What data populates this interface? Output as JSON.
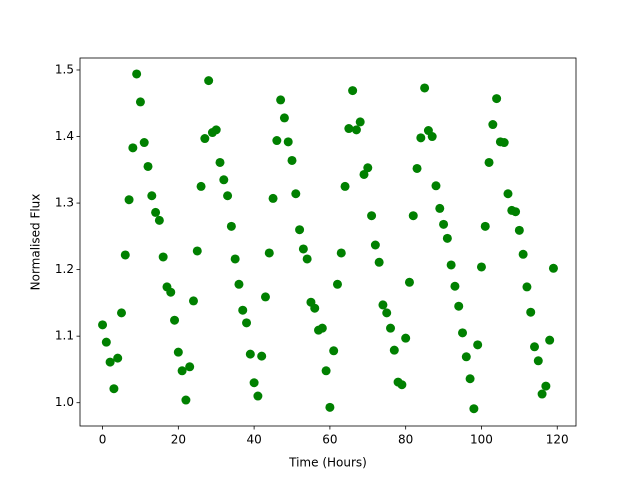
{
  "chart_data": {
    "type": "scatter",
    "xlabel": "Time (Hours)",
    "ylabel": "Normalised Flux",
    "color": "#008000",
    "x": [
      0,
      1,
      2,
      3,
      4,
      5,
      6,
      7,
      8,
      9,
      10,
      11,
      12,
      13,
      14,
      15,
      16,
      17,
      18,
      19,
      20,
      21,
      22,
      23,
      24,
      25,
      26,
      27,
      28,
      29,
      30,
      31,
      32,
      33,
      34,
      35,
      36,
      37,
      38,
      39,
      40,
      41,
      42,
      43,
      44,
      45,
      46,
      47,
      48,
      49,
      50,
      51,
      52,
      53,
      54,
      55,
      56,
      57,
      58,
      59,
      60,
      61,
      62,
      63,
      64,
      65,
      66,
      67,
      68,
      69,
      70,
      71,
      72,
      73,
      74,
      75,
      76,
      77,
      78,
      79,
      80,
      81,
      82,
      83,
      84,
      85,
      86,
      87,
      88,
      89,
      90,
      91,
      92,
      93,
      94,
      95,
      96,
      97,
      98,
      99,
      100,
      101,
      102,
      103,
      104,
      105,
      106,
      107,
      108,
      109,
      110,
      111,
      112,
      113,
      114,
      115,
      116,
      117,
      118,
      119
    ],
    "values": [
      1.117,
      1.091,
      1.061,
      1.021,
      1.067,
      1.135,
      1.222,
      1.305,
      1.383,
      1.494,
      1.452,
      1.391,
      1.355,
      1.311,
      1.286,
      1.274,
      1.219,
      1.174,
      1.166,
      1.124,
      1.076,
      1.048,
      1.004,
      1.054,
      1.153,
      1.228,
      1.325,
      1.397,
      1.484,
      1.406,
      1.41,
      1.361,
      1.335,
      1.311,
      1.265,
      1.216,
      1.178,
      1.139,
      1.12,
      1.073,
      1.03,
      1.01,
      1.07,
      1.159,
      1.225,
      1.307,
      1.394,
      1.455,
      1.428,
      1.392,
      1.364,
      1.314,
      1.26,
      1.231,
      1.216,
      1.151,
      1.142,
      1.109,
      1.112,
      1.048,
      0.993,
      1.078,
      1.178,
      1.225,
      1.325,
      1.412,
      1.469,
      1.41,
      1.422,
      1.343,
      1.353,
      1.281,
      1.237,
      1.211,
      1.147,
      1.135,
      1.112,
      1.079,
      1.031,
      1.027,
      1.097,
      1.181,
      1.281,
      1.352,
      1.398,
      1.473,
      1.409,
      1.4,
      1.326,
      1.292,
      1.268,
      1.247,
      1.207,
      1.175,
      1.145,
      1.105,
      1.069,
      1.036,
      0.991,
      1.087,
      1.204,
      1.265,
      1.361,
      1.418,
      1.457,
      1.392,
      1.391,
      1.314,
      1.289,
      1.287,
      1.259,
      1.223,
      1.174,
      1.136,
      1.084,
      1.063,
      1.013,
      1.025,
      1.094,
      1.202
    ],
    "xlim": [
      -5.95,
      124.95
    ],
    "xticks": [
      0,
      20,
      40,
      60,
      80,
      100,
      120
    ],
    "ylim": [
      0.965,
      1.518
    ],
    "yticks": [
      {
        "value": 1,
        "label": "1.0"
      },
      1.1,
      1.2,
      1.3,
      1.4,
      1.5
    ]
  }
}
